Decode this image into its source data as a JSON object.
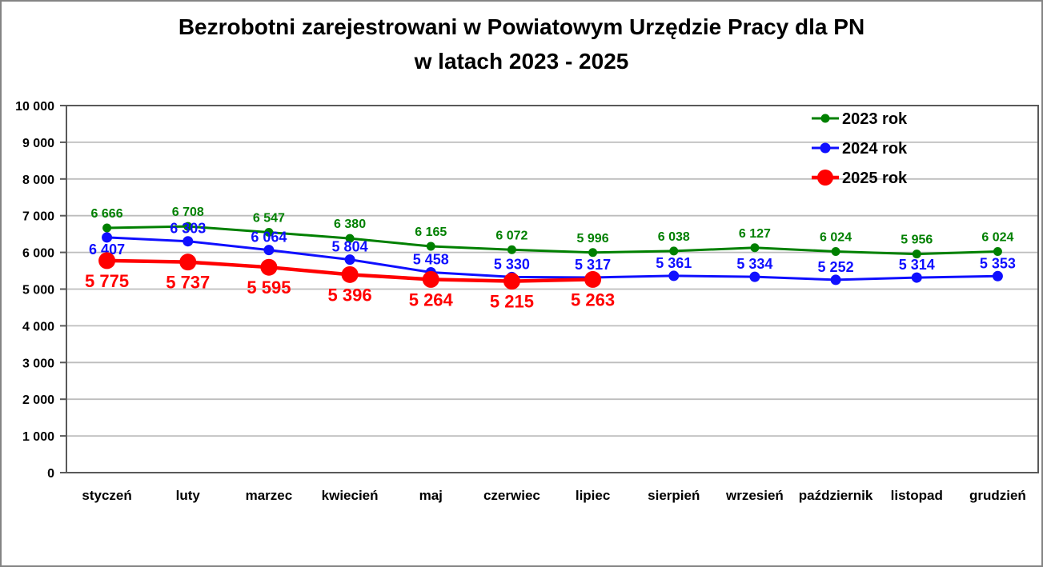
{
  "window": {
    "background": "#ffffff",
    "border_color": "#848484"
  },
  "chart_data": {
    "type": "line",
    "title": "Bezrobotni zarejestrowani w Powiatowym Urzędzie Pracy dla PN",
    "title_line2": "w latach 2023 - 2025",
    "categories": [
      "styczeń",
      "luty",
      "marzec",
      "kwiecień",
      "maj",
      "czerwiec",
      "lipiec",
      "sierpień",
      "wrzesień",
      "październik",
      "listopad",
      "grudzień"
    ],
    "series": [
      {
        "name": "2023 rok",
        "color": "#008000",
        "values": [
          6666,
          6708,
          6547,
          6380,
          6165,
          6072,
          5996,
          6038,
          6127,
          6024,
          5956,
          6024
        ],
        "data_labels": "above"
      },
      {
        "name": "2024 rok",
        "color": "#0f0fff",
        "values": [
          6407,
          6303,
          6064,
          5804,
          5458,
          5330,
          5317,
          5361,
          5334,
          5252,
          5314,
          5353
        ],
        "data_labels": "above",
        "label_overrides": {
          "0": "below"
        }
      },
      {
        "name": "2025 rok",
        "color": "#ff0000",
        "values": [
          5775,
          5737,
          5595,
          5396,
          5264,
          5215,
          5263
        ],
        "data_labels": "below"
      }
    ],
    "ylim": [
      0,
      10000
    ],
    "ytick_interval": 1000,
    "ytick_labels": [
      "0",
      "1 000",
      "2 000",
      "3 000",
      "4 000",
      "5 000",
      "6 000",
      "7 000",
      "8 000",
      "9 000",
      "10 000"
    ],
    "grid": true,
    "legend": {
      "position": "top-right",
      "entries": [
        "2023 rok",
        "2024 rok",
        "2025 rok"
      ]
    },
    "colors": {
      "gridline": "#bdbdbd",
      "plot_border": "#595959",
      "axis_text": "#000000"
    }
  }
}
